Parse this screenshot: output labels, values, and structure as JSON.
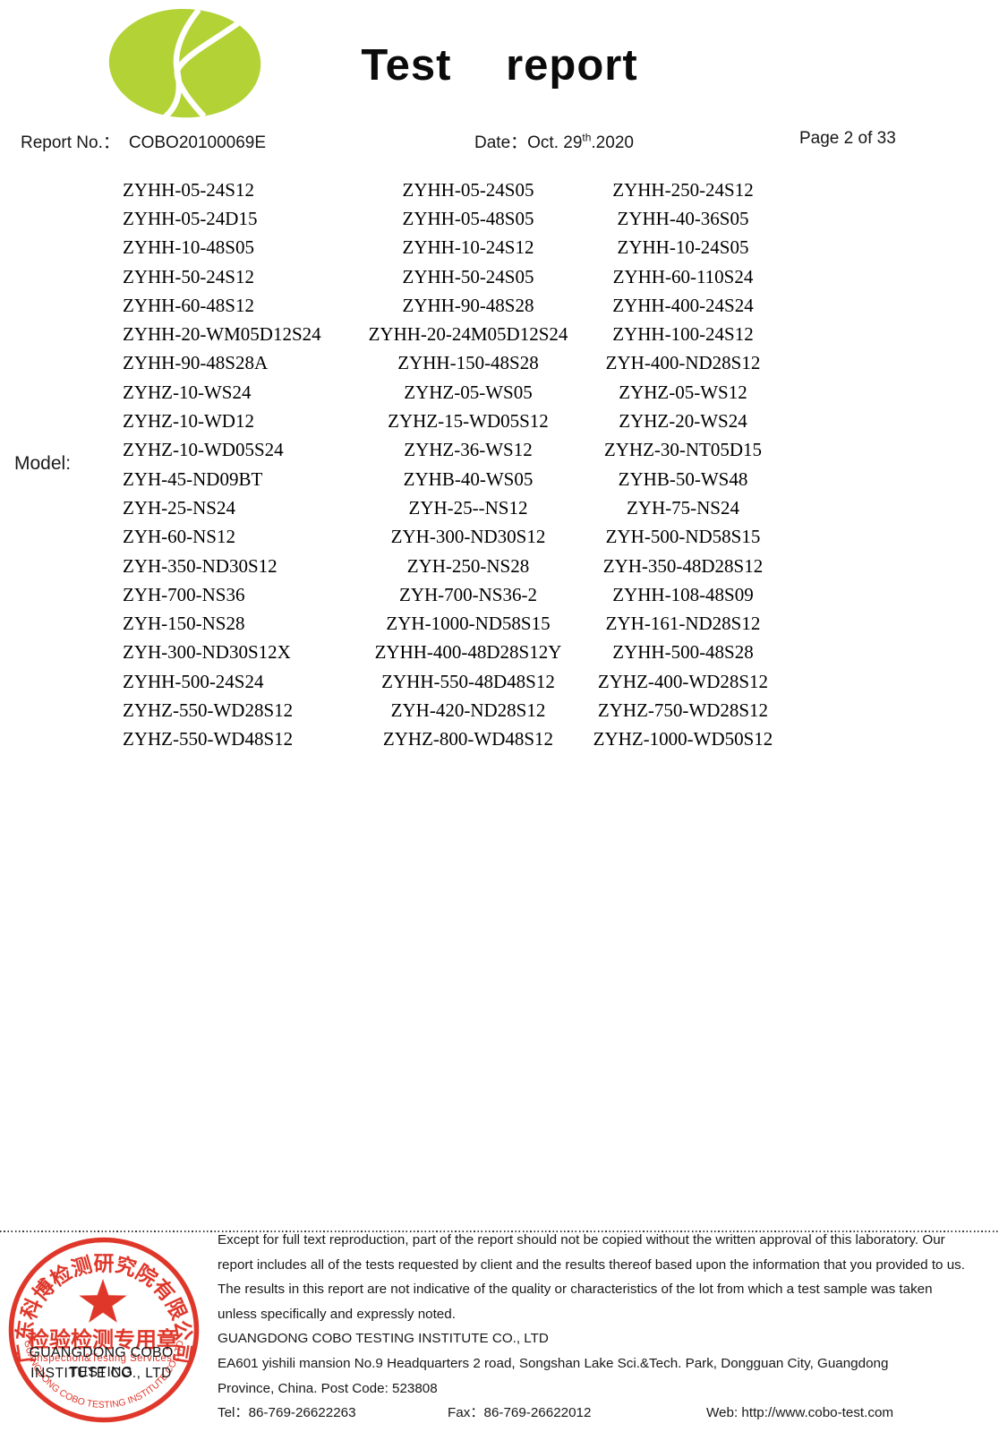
{
  "header": {
    "title": "Test report",
    "report_no_label": "Report No.：",
    "report_no": "COBO20100069E",
    "date_label": "Date：",
    "date_prefix": "Oct. 29",
    "date_sup": "th",
    "date_suffix": ".2020",
    "page": "Page 2 of 33",
    "logo_color": "#b2d235"
  },
  "models": {
    "label": "Model:",
    "rows": [
      [
        "ZYHH-05-24S12",
        "ZYHH-05-24S05",
        "ZYHH-250-24S12"
      ],
      [
        "ZYHH-05-24D15",
        "ZYHH-05-48S05",
        "ZYHH-40-36S05"
      ],
      [
        "ZYHH-10-48S05",
        "ZYHH-10-24S12",
        "ZYHH-10-24S05"
      ],
      [
        "ZYHH-50-24S12",
        "ZYHH-50-24S05",
        "ZYHH-60-110S24"
      ],
      [
        "ZYHH-60-48S12",
        "ZYHH-90-48S28",
        "ZYHH-400-24S24"
      ],
      [
        "ZYHH-20-WM05D12S24",
        "ZYHH-20-24M05D12S24",
        "ZYHH-100-24S12"
      ],
      [
        "ZYHH-90-48S28A",
        "ZYHH-150-48S28",
        "ZYH-400-ND28S12"
      ],
      [
        "ZYHZ-10-WS24",
        "ZYHZ-05-WS05",
        "ZYHZ-05-WS12"
      ],
      [
        "ZYHZ-10-WD12",
        "ZYHZ-15-WD05S12",
        "ZYHZ-20-WS24"
      ],
      [
        "ZYHZ-10-WD05S24",
        "ZYHZ-36-WS12",
        "ZYHZ-30-NT05D15"
      ],
      [
        "ZYH-45-ND09BT",
        "ZYHB-40-WS05",
        "ZYHB-50-WS48"
      ],
      [
        "ZYH-25-NS24",
        "ZYH-25--NS12",
        "ZYH-75-NS24"
      ],
      [
        "ZYH-60-NS12",
        "ZYH-300-ND30S12",
        "ZYH-500-ND58S15"
      ],
      [
        "ZYH-350-ND30S12",
        "ZYH-250-NS28",
        "ZYH-350-48D28S12"
      ],
      [
        "ZYH-700-NS36",
        "ZYH-700-NS36-2",
        "ZYHH-108-48S09"
      ],
      [
        "ZYH-150-NS28",
        "ZYH-1000-ND58S15",
        "ZYH-161-ND28S12"
      ],
      [
        "ZYH-300-ND30S12X",
        "ZYHH-400-48D28S12Y",
        "ZYHH-500-48S28"
      ],
      [
        "ZYHH-500-24S24",
        "ZYHH-550-48D48S12",
        "ZYHZ-400-WD28S12"
      ],
      [
        "ZYHZ-550-WD28S12",
        "ZYH-420-ND28S12",
        "ZYHZ-750-WD28S12"
      ],
      [
        "ZYHZ-550-WD48S12",
        "ZYHZ-800-WD48S12",
        "ZYHZ-1000-WD50S12"
      ]
    ]
  },
  "footer": {
    "disclaimer_lines": [
      "Except for full text reproduction, part of the report should not be copied without the written approval of this laboratory. Our",
      "report includes all of the tests requested by client and the results thereof based upon the information that you provided to us.",
      "The results in this report are not indicative of the quality or characteristics of the lot from which a test sample was taken",
      "unless specifically and expressly noted."
    ],
    "company_name": "GUANGDONG COBO TESTING INSTITUTE CO., LTD",
    "address_line1": "EA601 yishili mansion No.9 Headquarters 2 road, Songshan Lake Sci.&Tech. Park, Dongguan City, Guangdong",
    "address_line2": "Province, China. Post Code: 523808",
    "tel_label": "Tel：",
    "tel": "86-769-26622263",
    "fax_label": "Fax：",
    "fax": "86-769-26622012",
    "web_label": "Web: ",
    "web": "http://www.cobo-test.com"
  },
  "stamp": {
    "color": "#dd2a1c",
    "arc_text_cn": "广东科博检测研究院有限公司",
    "line_cn": "检验检测专用章",
    "line_en_small": "Inspection&Testing Services",
    "arc_text_en": "GUANGDONG COBO TESTING INSTITUTE CO.,LTD",
    "under_text_line1": "GUANGDONG COBO TESTING",
    "under_text_line2": "INSTITUTE CO., LTD"
  }
}
